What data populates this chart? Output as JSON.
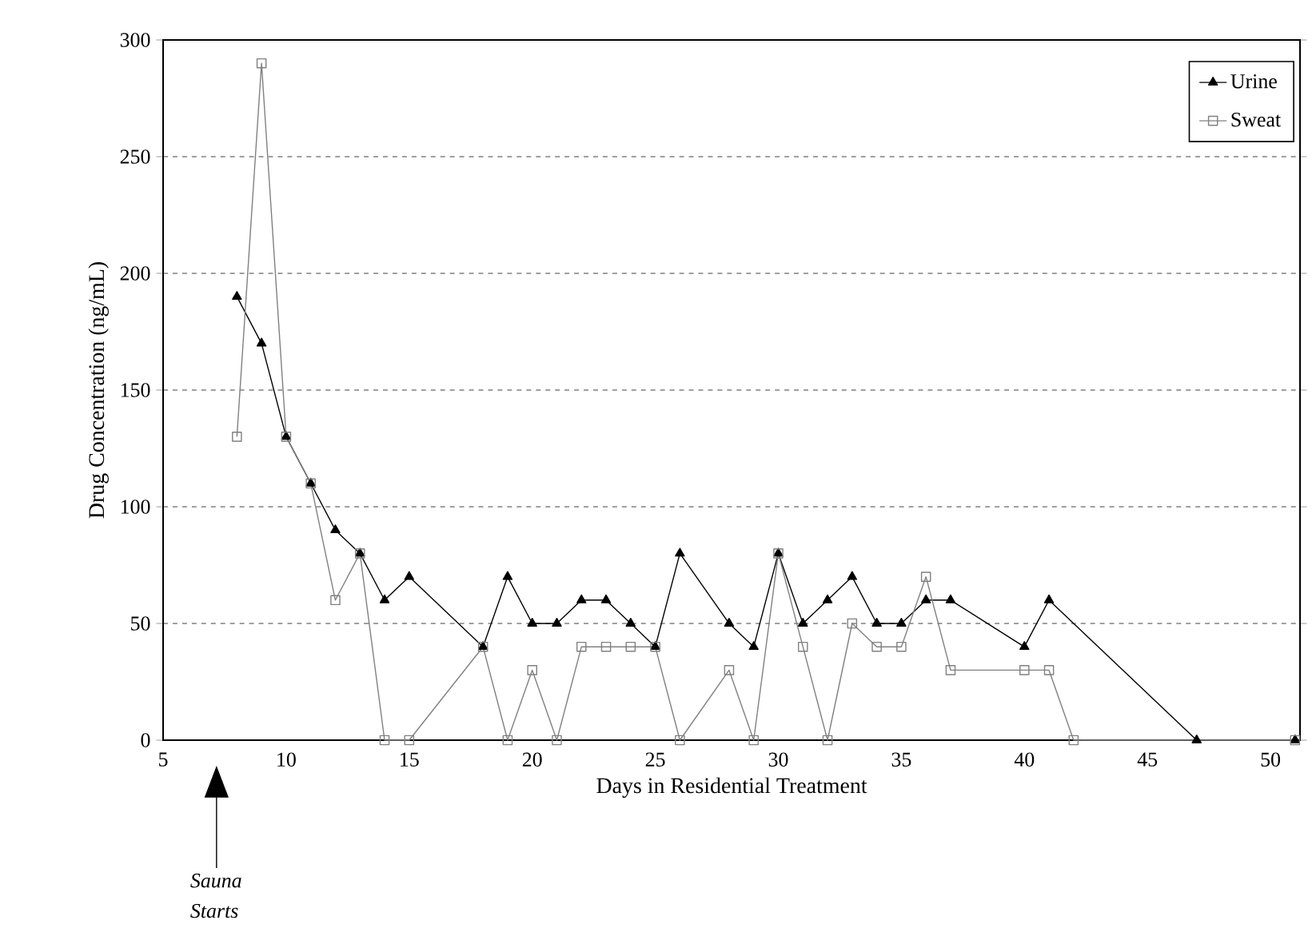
{
  "chart_data": {
    "type": "line",
    "xlabel": "Days in Residential Treatment",
    "ylabel": "Drug Concentration (ng/mL)",
    "xlim": [
      5,
      51.2
    ],
    "xticks": [
      5,
      10,
      15,
      20,
      25,
      30,
      35,
      40,
      45,
      50
    ],
    "ylim": [
      0,
      300
    ],
    "yticks": [
      0,
      50,
      100,
      150,
      200,
      250,
      300
    ],
    "grid": "y",
    "legend": "top right",
    "line_style": "solid",
    "series": [
      {
        "name": "Urine",
        "color": "#000000",
        "marker": "triangle",
        "x": [
          8,
          9,
          10,
          11,
          12,
          13,
          14,
          15,
          18,
          19,
          20,
          21,
          22,
          23,
          24,
          25,
          26,
          28,
          29,
          30,
          31,
          32,
          33,
          34,
          35,
          36,
          37,
          40,
          41,
          47,
          51
        ],
        "values": [
          190,
          170,
          130,
          110,
          90,
          80,
          60,
          70,
          40,
          70,
          50,
          50,
          60,
          60,
          50,
          40,
          80,
          50,
          40,
          80,
          50,
          60,
          70,
          50,
          50,
          60,
          60,
          40,
          60,
          0,
          0
        ]
      },
      {
        "name": "Sweat",
        "color": "#808080",
        "marker": "square",
        "x": [
          8,
          9,
          10,
          11,
          12,
          13,
          14,
          15,
          18,
          19,
          20,
          21,
          22,
          23,
          24,
          25,
          26,
          28,
          29,
          30,
          31,
          32,
          33,
          34,
          35,
          36,
          37,
          40,
          41,
          42,
          51
        ],
        "values": [
          130,
          290,
          130,
          110,
          60,
          80,
          0,
          0,
          40,
          0,
          30,
          0,
          40,
          40,
          40,
          40,
          0,
          30,
          0,
          80,
          40,
          0,
          50,
          40,
          40,
          70,
          30,
          30,
          30,
          0,
          0
        ]
      }
    ],
    "annotations": [
      "Sauna Starts"
    ]
  }
}
